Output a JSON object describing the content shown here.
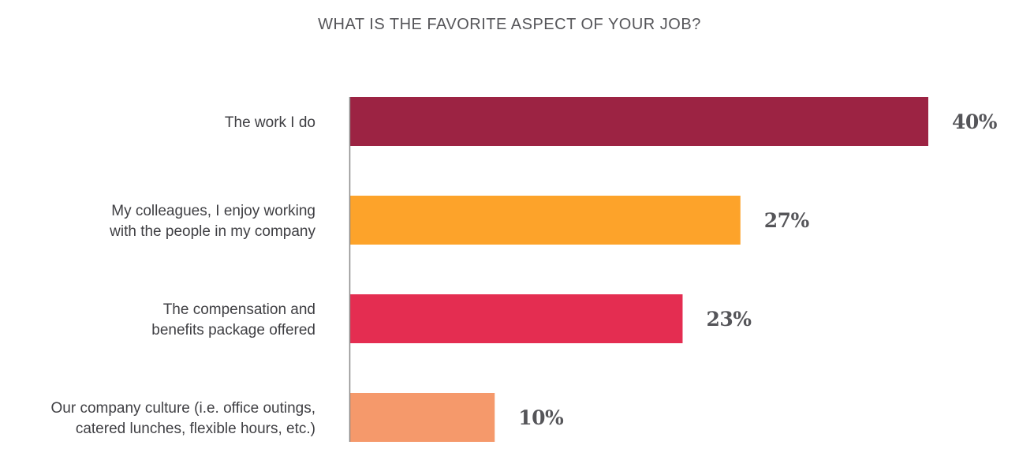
{
  "chart_data": {
    "type": "bar",
    "orientation": "horizontal",
    "title": "WHAT IS THE FAVORITE ASPECT OF YOUR JOB?",
    "categories": [
      [
        "The work I do"
      ],
      [
        "My colleagues, I enjoy working",
        "with the people in my company"
      ],
      [
        "The compensation and",
        "benefits package offered"
      ],
      [
        "Our company culture (i.e. office outings,",
        "catered lunches, flexible hours, etc.)"
      ]
    ],
    "values": [
      40,
      27,
      23,
      10
    ],
    "value_labels": [
      "40%",
      "27%",
      "23%",
      "10%"
    ],
    "colors": [
      "#9c2343",
      "#fda32a",
      "#e42d51",
      "#f5996b"
    ],
    "xlim": [
      0,
      40
    ],
    "grid": false,
    "legend": "none",
    "axis_color": "#8a8a8a"
  }
}
